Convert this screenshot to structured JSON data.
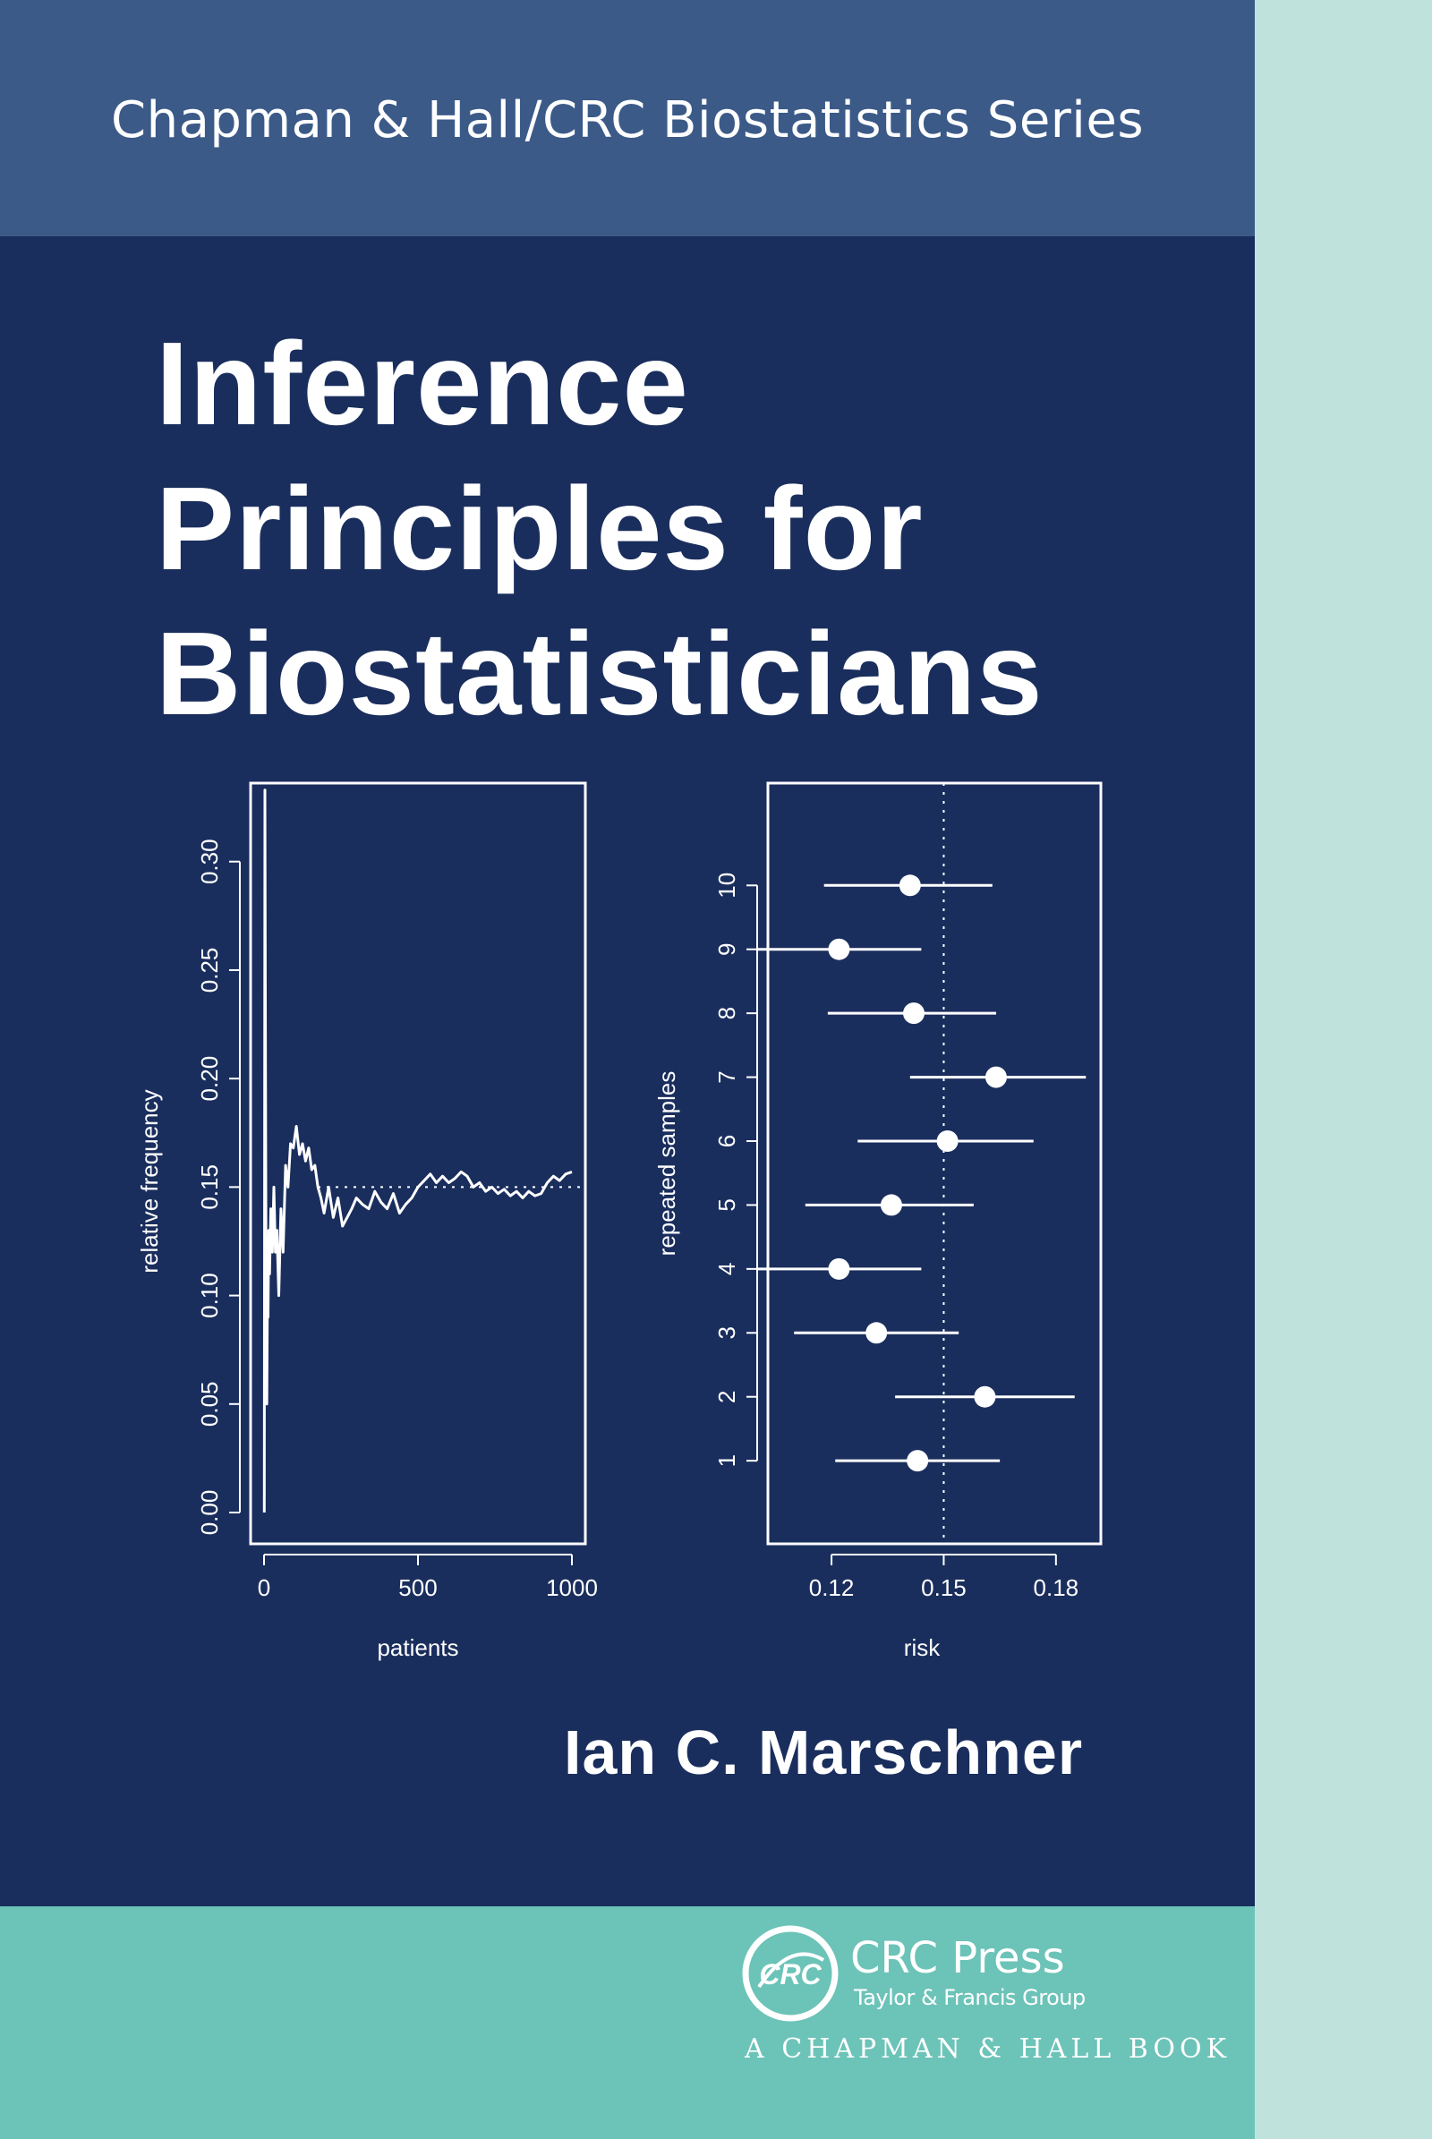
{
  "series": "Chapman & Hall/CRC Biostatistics Series",
  "title_lines": [
    "Inference",
    "Principles for",
    "Biostatisticians"
  ],
  "author": "Ian C. Marschner",
  "publisher": {
    "logo_text": "CRC",
    "name": "CRC Press",
    "group": "Taylor & Francis Group",
    "imprint": "A CHAPMAN & HALL BOOK"
  },
  "colors": {
    "cover": "#1a2e5d",
    "series_band": "#3b5a88",
    "publisher_band": "#6cc3b8",
    "spine_strip": "#c0e2dd",
    "ink": "#ffffff"
  },
  "chart_data": [
    {
      "type": "line",
      "xlabel": "patients",
      "ylabel": "relative frequency",
      "xlim": [
        0,
        1000
      ],
      "ylim": [
        0,
        0.33
      ],
      "x_ticks": [
        "0",
        "500",
        "1000"
      ],
      "y_ticks": [
        "0.00",
        "0.05",
        "0.10",
        "0.15",
        "0.20",
        "0.25",
        "0.30"
      ],
      "reference_line": 0.15,
      "x": [
        1,
        3,
        5,
        7,
        9,
        11,
        13,
        15,
        18,
        22,
        27,
        32,
        37,
        42,
        48,
        55,
        62,
        70,
        78,
        86,
        95,
        105,
        115,
        125,
        135,
        145,
        155,
        165,
        175,
        185,
        195,
        210,
        225,
        240,
        255,
        270,
        285,
        300,
        320,
        340,
        360,
        380,
        400,
        420,
        440,
        460,
        480,
        500,
        520,
        540,
        560,
        580,
        600,
        620,
        640,
        660,
        680,
        700,
        720,
        740,
        760,
        780,
        800,
        820,
        840,
        860,
        880,
        900,
        920,
        940,
        960,
        980,
        1000
      ],
      "y": [
        0.0,
        0.333,
        0.2,
        0.08,
        0.05,
        0.1,
        0.09,
        0.13,
        0.11,
        0.14,
        0.12,
        0.15,
        0.12,
        0.13,
        0.1,
        0.14,
        0.12,
        0.16,
        0.15,
        0.17,
        0.168,
        0.178,
        0.165,
        0.17,
        0.162,
        0.168,
        0.158,
        0.16,
        0.15,
        0.145,
        0.138,
        0.15,
        0.136,
        0.145,
        0.132,
        0.136,
        0.14,
        0.145,
        0.142,
        0.14,
        0.148,
        0.143,
        0.14,
        0.147,
        0.138,
        0.142,
        0.145,
        0.15,
        0.153,
        0.156,
        0.152,
        0.155,
        0.152,
        0.154,
        0.157,
        0.155,
        0.15,
        0.152,
        0.148,
        0.15,
        0.147,
        0.149,
        0.146,
        0.148,
        0.145,
        0.148,
        0.146,
        0.147,
        0.152,
        0.155,
        0.153,
        0.156,
        0.157
      ]
    },
    {
      "type": "scatter",
      "xlabel": "risk",
      "ylabel": "repeated samples",
      "xlim": [
        0.103,
        0.192
      ],
      "ylim": [
        -0.3,
        11.6
      ],
      "x_ticks": [
        "0.12",
        "0.15",
        "0.18"
      ],
      "y_ticks": [
        "1",
        "2",
        "3",
        "4",
        "5",
        "6",
        "7",
        "8",
        "9",
        "10"
      ],
      "reference_line": 0.15,
      "samples": [
        1,
        2,
        3,
        4,
        5,
        6,
        7,
        8,
        9,
        10
      ],
      "estimates": [
        0.143,
        0.161,
        0.132,
        0.122,
        0.136,
        0.151,
        0.164,
        0.142,
        0.122,
        0.141
      ],
      "lower": [
        0.121,
        0.137,
        0.11,
        0.1,
        0.113,
        0.127,
        0.141,
        0.119,
        0.1,
        0.118
      ],
      "upper": [
        0.165,
        0.185,
        0.154,
        0.144,
        0.158,
        0.174,
        0.188,
        0.164,
        0.144,
        0.163
      ]
    }
  ]
}
